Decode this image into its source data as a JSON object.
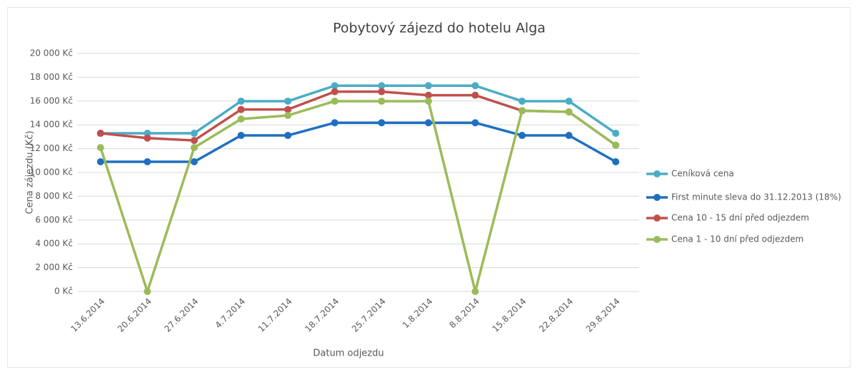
{
  "chart_data": {
    "type": "line",
    "title": "Pobytový zájezd do hotelu Alga",
    "x_label": "Datum odjezdu",
    "y_label": "Cena zájezdu (Kč)",
    "categories": [
      "13.6.2014",
      "20.6.2014",
      "27.6.2014",
      "4.7.2014",
      "11.7.2014",
      "18.7.2014",
      "25.7.2014",
      "1.8.2014",
      "8.8.2014",
      "15.8.2014",
      "22.8.2014",
      "29.8.2014"
    ],
    "series": [
      {
        "name": "Ceníková cena",
        "color": "#4bacc6",
        "values": [
          13290,
          13290,
          13290,
          15990,
          15990,
          17290,
          17290,
          17290,
          17290,
          15990,
          15990,
          13290
        ]
      },
      {
        "name": "First minute sleva do 31.12.2013 (18%)",
        "color": "#1f6fc1",
        "values": [
          10898,
          10898,
          10898,
          13112,
          13112,
          14178,
          14178,
          14178,
          14178,
          13112,
          13112,
          10898
        ]
      },
      {
        "name": "Cena 10 - 15 dní před odjezdem",
        "color": "#c0504d",
        "values": [
          13290,
          12890,
          12690,
          15290,
          15290,
          16790,
          16790,
          16490,
          16490,
          15190,
          15090,
          12290
        ]
      },
      {
        "name": "Cena 1 - 10 dní před odjezdem",
        "color": "#9bbb59",
        "values": [
          12090,
          0,
          12090,
          14490,
          14790,
          15990,
          15990,
          15990,
          0,
          15190,
          15090,
          12290
        ]
      }
    ],
    "ylim": [
      0,
      20000
    ],
    "yticks": [
      {
        "value": 0,
        "label": "0 Kč"
      },
      {
        "value": 2000,
        "label": "2 000 Kč"
      },
      {
        "value": 4000,
        "label": "4 000 Kč"
      },
      {
        "value": 6000,
        "label": "6 000 Kč"
      },
      {
        "value": 8000,
        "label": "8 000 Kč"
      },
      {
        "value": 10000,
        "label": "10 000 Kč"
      },
      {
        "value": 12000,
        "label": "12 000 Kč"
      },
      {
        "value": 14000,
        "label": "14 000 Kč"
      },
      {
        "value": 16000,
        "label": "16 000 Kč"
      },
      {
        "value": 18000,
        "label": "18 000 Kč"
      },
      {
        "value": 20000,
        "label": "20 000 Kč"
      }
    ],
    "grid": true,
    "legend": "right"
  }
}
